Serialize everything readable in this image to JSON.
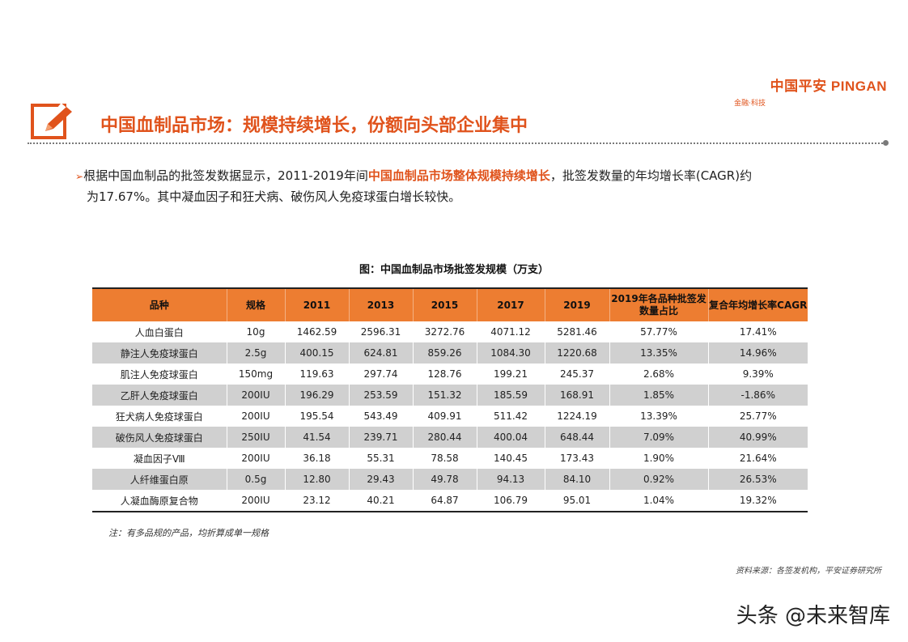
{
  "logo": {
    "main": "中国平安 PINGAN",
    "sub": "金融·科技"
  },
  "page_title": "中国血制品市场：规模持续增长，份额向头部企业集中",
  "bullet": {
    "arrow": "➢",
    "part1": "根据中国血制品的批签发数据显示，2011-2019年间",
    "highlight": "中国血制品市场整体规模持续增长",
    "part2": "，批签发数量的年均增长率(CAGR)约",
    "line2": "为17.67%。其中凝血因子和狂犬病、破伤风人免疫球蛋白增长较快。"
  },
  "table": {
    "title": "图：中国血制品市场批签发规模（万支）",
    "headers": [
      "品种",
      "规格",
      "2011",
      "2013",
      "2015",
      "2017",
      "2019",
      "2019年各品种批签发数量占比",
      "复合年均增长率CAGR"
    ],
    "rows": [
      [
        "人血白蛋白",
        "10g",
        "1462.59",
        "2596.31",
        "3272.76",
        "4071.12",
        "5281.46",
        "57.77%",
        "17.41%"
      ],
      [
        "静注人免疫球蛋白",
        "2.5g",
        "400.15",
        "624.81",
        "859.26",
        "1084.30",
        "1220.68",
        "13.35%",
        "14.96%"
      ],
      [
        "肌注人免疫球蛋白",
        "150mg",
        "119.63",
        "297.74",
        "128.76",
        "199.21",
        "245.37",
        "2.68%",
        "9.39%"
      ],
      [
        "乙肝人免疫球蛋白",
        "200IU",
        "196.29",
        "253.59",
        "151.32",
        "185.59",
        "168.91",
        "1.85%",
        "-1.86%"
      ],
      [
        "狂犬病人免疫球蛋白",
        "200IU",
        "195.54",
        "543.49",
        "409.91",
        "511.42",
        "1224.19",
        "13.39%",
        "25.77%"
      ],
      [
        "破伤风人免疫球蛋白",
        "250IU",
        "41.54",
        "239.71",
        "280.44",
        "400.04",
        "648.44",
        "7.09%",
        "40.99%"
      ],
      [
        "凝血因子Ⅷ",
        "200IU",
        "36.18",
        "55.31",
        "78.58",
        "140.45",
        "173.43",
        "1.90%",
        "21.64%"
      ],
      [
        "人纤维蛋白原",
        "0.5g",
        "12.80",
        "29.43",
        "49.78",
        "94.13",
        "84.10",
        "0.92%",
        "26.53%"
      ],
      [
        "人凝血酶原复合物",
        "200IU",
        "23.12",
        "40.21",
        "64.87",
        "106.79",
        "95.01",
        "1.04%",
        "19.32%"
      ]
    ]
  },
  "note": "注：有多品规的产品，均折算成单一规格",
  "source": "资料来源：各签发机构，平安证券研究所",
  "watermark": "头条 @未来智库",
  "colors": {
    "accent": "#e0531c",
    "header_bg": "#ed7d31",
    "stripe": "#d0d0d0"
  },
  "icons": {
    "title_icon": "edit-pencil-icon"
  }
}
